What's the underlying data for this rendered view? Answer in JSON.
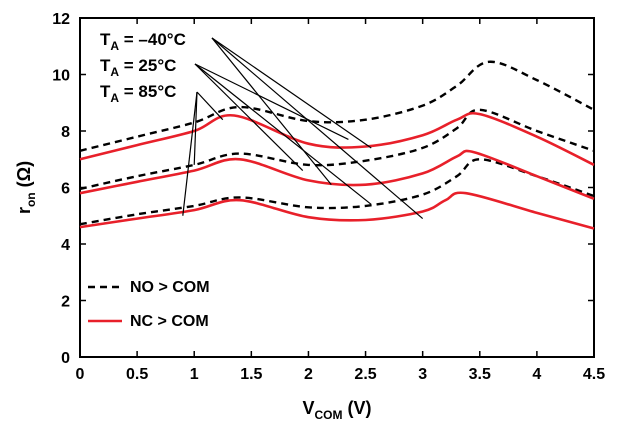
{
  "chart_data": {
    "type": "line",
    "title": "",
    "xlabel": {
      "main": "V",
      "sub": "COM",
      "rest": " (V)"
    },
    "ylabel": {
      "main": "r",
      "sub": "on",
      "rest": " (Ω)"
    },
    "xlim": [
      0,
      4.5
    ],
    "ylim": [
      0,
      12
    ],
    "xticks": [
      "0",
      "0.5",
      "1",
      "1.5",
      "2",
      "2.5",
      "3",
      "3.5",
      "4",
      "4.5"
    ],
    "yticks": [
      "0",
      "2",
      "4",
      "6",
      "8",
      "10",
      "12"
    ],
    "grid": false,
    "legend": {
      "placement": "bottom-left",
      "entries": [
        {
          "label": "NO > COM",
          "style": "dashed",
          "color": "#000000"
        },
        {
          "label": "NC > COM",
          "style": "solid",
          "color": "#e8202a"
        }
      ]
    },
    "annotations": [
      {
        "main": "T",
        "sub": "A",
        "rest": " = –40°C",
        "targets": [
          [
            2.55,
            7.4
          ],
          [
            2.2,
            6.1
          ],
          [
            3.0,
            4.9
          ]
        ]
      },
      {
        "main": "T",
        "sub": "A",
        "rest": " = 25°C",
        "targets": [
          [
            2.35,
            7.7
          ],
          [
            1.95,
            6.6
          ],
          [
            2.55,
            5.4
          ]
        ]
      },
      {
        "main": "T",
        "sub": "A",
        "rest": " = 85°C",
        "targets": [
          [
            1.25,
            8.4
          ],
          [
            1.0,
            6.8
          ],
          [
            0.9,
            5.0
          ]
        ]
      }
    ],
    "series": [
      {
        "legend": "NO > COM",
        "temp": "85°C",
        "x": [
          0,
          0.5,
          1.0,
          1.4,
          2.0,
          2.5,
          3.0,
          3.3,
          3.58,
          4.0,
          4.5
        ],
        "y": [
          7.3,
          7.8,
          8.3,
          8.85,
          8.35,
          8.4,
          8.9,
          9.6,
          10.45,
          9.8,
          8.75
        ]
      },
      {
        "legend": "NO > COM",
        "temp": "25°C",
        "x": [
          0,
          0.5,
          1.0,
          1.4,
          2.0,
          2.5,
          3.0,
          3.3,
          3.5,
          4.0,
          4.5
        ],
        "y": [
          5.95,
          6.4,
          6.8,
          7.2,
          6.8,
          6.95,
          7.4,
          8.1,
          8.75,
          8.0,
          7.3
        ]
      },
      {
        "legend": "NO > COM",
        "temp": "–40°C",
        "x": [
          0,
          0.5,
          1.0,
          1.4,
          2.0,
          2.5,
          3.0,
          3.3,
          3.5,
          4.0,
          4.5
        ],
        "y": [
          4.7,
          5.05,
          5.35,
          5.65,
          5.3,
          5.35,
          5.75,
          6.4,
          7.0,
          6.4,
          5.7
        ]
      },
      {
        "legend": "NC > COM",
        "temp": "85°C",
        "x": [
          0,
          0.5,
          1.0,
          1.35,
          2.0,
          2.5,
          3.0,
          3.3,
          3.5,
          4.0,
          4.5
        ],
        "y": [
          7.0,
          7.5,
          8.0,
          8.55,
          7.55,
          7.45,
          7.85,
          8.4,
          8.6,
          7.8,
          6.8
        ]
      },
      {
        "legend": "NC > COM",
        "temp": "25°C",
        "x": [
          0,
          0.5,
          1.0,
          1.4,
          2.0,
          2.5,
          3.0,
          3.3,
          3.45,
          4.0,
          4.5
        ],
        "y": [
          5.8,
          6.2,
          6.6,
          7.0,
          6.25,
          6.1,
          6.5,
          7.1,
          7.25,
          6.4,
          5.6
        ]
      },
      {
        "legend": "NC > COM",
        "temp": "–40°C",
        "x": [
          0,
          0.5,
          1.0,
          1.4,
          2.0,
          2.5,
          3.0,
          3.2,
          3.38,
          4.0,
          4.5
        ],
        "y": [
          4.6,
          4.9,
          5.2,
          5.55,
          4.95,
          4.85,
          5.15,
          5.55,
          5.8,
          5.1,
          4.55
        ]
      }
    ]
  }
}
